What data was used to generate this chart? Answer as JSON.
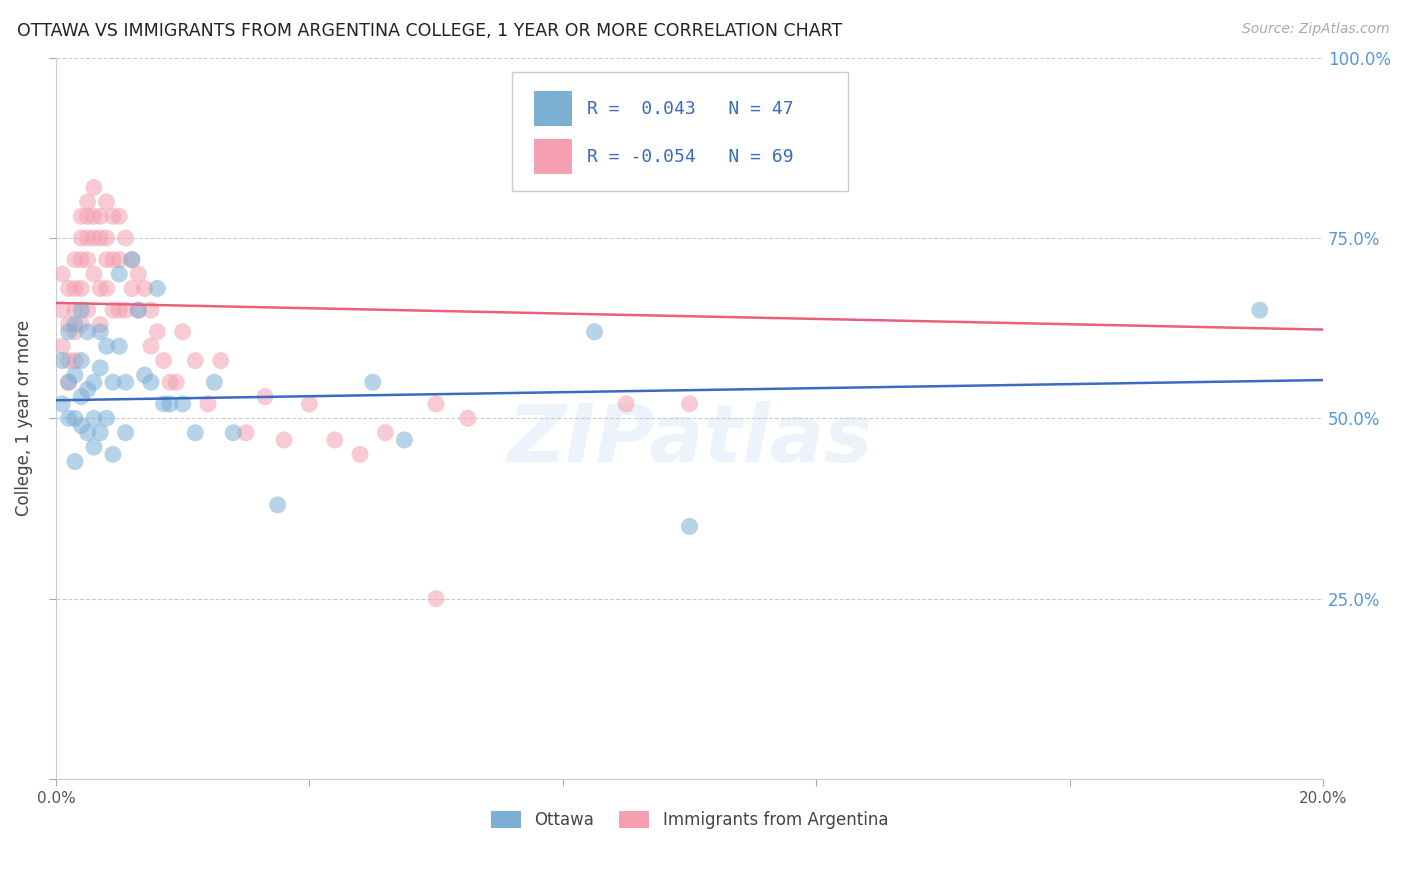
{
  "title": "OTTAWA VS IMMIGRANTS FROM ARGENTINA COLLEGE, 1 YEAR OR MORE CORRELATION CHART",
  "source": "Source: ZipAtlas.com",
  "ylabel": "College, 1 year or more",
  "xlim": [
    0.0,
    0.2
  ],
  "ylim": [
    0.0,
    1.0
  ],
  "yticks": [
    0.0,
    0.25,
    0.5,
    0.75,
    1.0
  ],
  "ytick_labels": [
    "",
    "25.0%",
    "50.0%",
    "75.0%",
    "100.0%"
  ],
  "xticks": [
    0.0,
    0.04,
    0.08,
    0.12,
    0.16,
    0.2
  ],
  "xtick_labels": [
    "0.0%",
    "",
    "",
    "",
    "",
    "20.0%"
  ],
  "ottawa_color": "#7bafd4",
  "argentina_color": "#f4a0b0",
  "line_ottawa_color": "#3a6bbf",
  "line_argentina_color": "#e8607a",
  "R_ottawa": 0.043,
  "N_ottawa": 47,
  "R_argentina": -0.054,
  "N_argentina": 69,
  "legend_text_color": "#3a6bbf",
  "watermark": "ZIPatlas",
  "ottawa_points_x": [
    0.001,
    0.001,
    0.002,
    0.002,
    0.002,
    0.003,
    0.003,
    0.003,
    0.003,
    0.004,
    0.004,
    0.004,
    0.004,
    0.005,
    0.005,
    0.005,
    0.006,
    0.006,
    0.006,
    0.007,
    0.007,
    0.007,
    0.008,
    0.008,
    0.009,
    0.009,
    0.01,
    0.01,
    0.011,
    0.011,
    0.012,
    0.013,
    0.014,
    0.015,
    0.016,
    0.017,
    0.018,
    0.02,
    0.022,
    0.025,
    0.028,
    0.035,
    0.05,
    0.055,
    0.085,
    0.1,
    0.19
  ],
  "ottawa_points_y": [
    0.58,
    0.52,
    0.62,
    0.55,
    0.5,
    0.63,
    0.56,
    0.5,
    0.44,
    0.65,
    0.58,
    0.53,
    0.49,
    0.62,
    0.54,
    0.48,
    0.55,
    0.5,
    0.46,
    0.62,
    0.57,
    0.48,
    0.6,
    0.5,
    0.55,
    0.45,
    0.7,
    0.6,
    0.55,
    0.48,
    0.72,
    0.65,
    0.56,
    0.55,
    0.68,
    0.52,
    0.52,
    0.52,
    0.48,
    0.55,
    0.48,
    0.38,
    0.55,
    0.47,
    0.62,
    0.35,
    0.65
  ],
  "argentina_points_x": [
    0.001,
    0.001,
    0.001,
    0.002,
    0.002,
    0.002,
    0.002,
    0.003,
    0.003,
    0.003,
    0.003,
    0.003,
    0.004,
    0.004,
    0.004,
    0.004,
    0.004,
    0.005,
    0.005,
    0.005,
    0.005,
    0.005,
    0.006,
    0.006,
    0.006,
    0.006,
    0.007,
    0.007,
    0.007,
    0.007,
    0.008,
    0.008,
    0.008,
    0.008,
    0.009,
    0.009,
    0.009,
    0.01,
    0.01,
    0.01,
    0.011,
    0.011,
    0.012,
    0.012,
    0.013,
    0.013,
    0.014,
    0.015,
    0.015,
    0.016,
    0.017,
    0.018,
    0.019,
    0.02,
    0.022,
    0.024,
    0.026,
    0.03,
    0.033,
    0.036,
    0.04,
    0.044,
    0.048,
    0.052,
    0.06,
    0.065,
    0.09,
    0.1,
    0.06
  ],
  "argentina_points_y": [
    0.65,
    0.6,
    0.7,
    0.68,
    0.63,
    0.58,
    0.55,
    0.72,
    0.68,
    0.65,
    0.62,
    0.58,
    0.78,
    0.75,
    0.72,
    0.68,
    0.63,
    0.8,
    0.78,
    0.75,
    0.72,
    0.65,
    0.82,
    0.78,
    0.75,
    0.7,
    0.78,
    0.75,
    0.68,
    0.63,
    0.8,
    0.75,
    0.72,
    0.68,
    0.78,
    0.72,
    0.65,
    0.78,
    0.72,
    0.65,
    0.75,
    0.65,
    0.72,
    0.68,
    0.7,
    0.65,
    0.68,
    0.65,
    0.6,
    0.62,
    0.58,
    0.55,
    0.55,
    0.62,
    0.58,
    0.52,
    0.58,
    0.48,
    0.53,
    0.47,
    0.52,
    0.47,
    0.45,
    0.48,
    0.52,
    0.5,
    0.52,
    0.52,
    0.25
  ],
  "line_ottawa_y0": 0.525,
  "line_ottawa_y1": 0.553,
  "line_argentina_y0": 0.66,
  "line_argentina_y1": 0.623
}
